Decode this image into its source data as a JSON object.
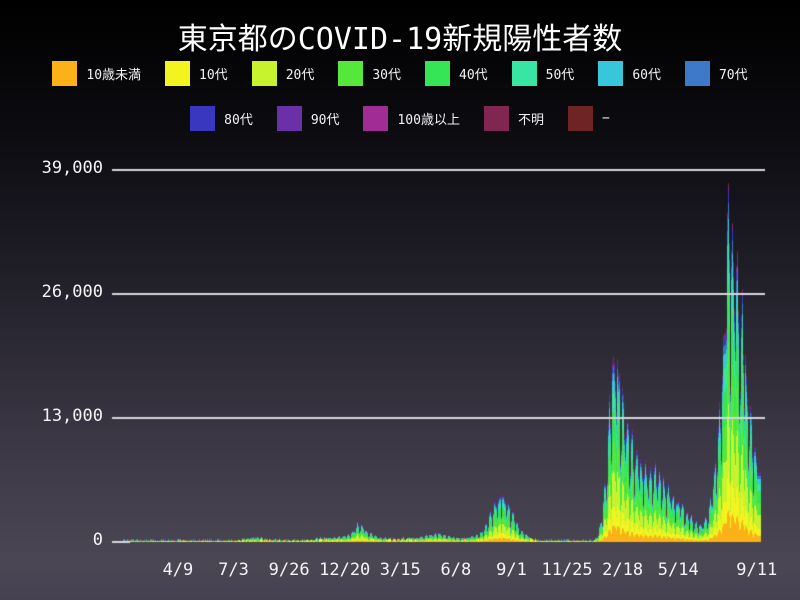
{
  "title": "東京都のCOVID-19新規陽性者数",
  "legend": {
    "row1": [
      {
        "label": "10歳未満",
        "color": "#FBB117"
      },
      {
        "label": "10代",
        "color": "#F3F41F"
      },
      {
        "label": "20代",
        "color": "#C6F32E"
      },
      {
        "label": "30代",
        "color": "#55E83B"
      },
      {
        "label": "40代",
        "color": "#35E556"
      },
      {
        "label": "50代",
        "color": "#38E5A2"
      },
      {
        "label": "60代",
        "color": "#38C6DB"
      },
      {
        "label": "70代",
        "color": "#3D79C8"
      }
    ],
    "row2": [
      {
        "label": "80代",
        "color": "#3936BF"
      },
      {
        "label": "90代",
        "color": "#6B2FA8"
      },
      {
        "label": "100歳以上",
        "color": "#A22C95"
      },
      {
        "label": "不明",
        "color": "#812551"
      },
      {
        "label": "−",
        "color": "#6E2424"
      }
    ]
  },
  "chart_data": {
    "type": "area",
    "stacked": true,
    "title": "東京都のCOVID-19新規陽性者数",
    "xlabel": "",
    "ylabel": "",
    "ylim": [
      0,
      42000
    ],
    "grid": {
      "color": "#d6d6dc",
      "lines_at": [
        13000,
        26000,
        39000
      ],
      "on_top": true
    },
    "y_ticks": [
      {
        "label": "0",
        "value": 0
      },
      {
        "label": "13,000",
        "value": 13000
      },
      {
        "label": "26,000",
        "value": 26000
      },
      {
        "label": "39,000",
        "value": 39000
      }
    ],
    "x_ticks": [
      {
        "label": "4/9",
        "date": "2020-04-09"
      },
      {
        "label": "7/3",
        "date": "2020-07-03"
      },
      {
        "label": "9/26",
        "date": "2020-09-26"
      },
      {
        "label": "12/20",
        "date": "2020-12-20"
      },
      {
        "label": "3/15",
        "date": "2021-03-15"
      },
      {
        "label": "6/8",
        "date": "2021-06-08"
      },
      {
        "label": "9/1",
        "date": "2021-09-01"
      },
      {
        "label": "11/25",
        "date": "2021-11-25"
      },
      {
        "label": "2/18",
        "date": "2022-02-18"
      },
      {
        "label": "5/14",
        "date": "2022-05-14"
      },
      {
        "label": "9/11",
        "date": "2022-09-11"
      }
    ],
    "date_start": "2020-01-16",
    "date_end": "2022-09-11",
    "series": [
      {
        "name": "10歳未満",
        "color": "#FBB117",
        "fraction": 0.085
      },
      {
        "name": "10代",
        "color": "#F3F41F",
        "fraction": 0.105
      },
      {
        "name": "20代",
        "color": "#C6F32E",
        "fraction": 0.185
      },
      {
        "name": "30代",
        "color": "#55E83B",
        "fraction": 0.17
      },
      {
        "name": "40代",
        "color": "#35E556",
        "fraction": 0.155
      },
      {
        "name": "50代",
        "color": "#38E5A2",
        "fraction": 0.115
      },
      {
        "name": "60代",
        "color": "#38C6DB",
        "fraction": 0.065
      },
      {
        "name": "70代",
        "color": "#3D79C8",
        "fraction": 0.042
      },
      {
        "name": "80代",
        "color": "#3936BF",
        "fraction": 0.028
      },
      {
        "name": "90代",
        "color": "#6B2FA8",
        "fraction": 0.013
      },
      {
        "name": "100歳以上",
        "color": "#A22C95",
        "fraction": 0.002
      },
      {
        "name": "不明",
        "color": "#812551",
        "fraction": 0.008
      },
      {
        "name": "−",
        "color": "#6E2424",
        "fraction": 0.003
      }
    ],
    "total_envelope_7day": [
      [
        "2020-01-16",
        1
      ],
      [
        "2020-02-20",
        4
      ],
      [
        "2020-03-15",
        20
      ],
      [
        "2020-03-28",
        60
      ],
      [
        "2020-04-11",
        170
      ],
      [
        "2020-04-18",
        160
      ],
      [
        "2020-05-05",
        60
      ],
      [
        "2020-05-23",
        8
      ],
      [
        "2020-06-10",
        20
      ],
      [
        "2020-06-30",
        55
      ],
      [
        "2020-07-15",
        230
      ],
      [
        "2020-08-01",
        400
      ],
      [
        "2020-08-10",
        350
      ],
      [
        "2020-08-25",
        220
      ],
      [
        "2020-09-20",
        160
      ],
      [
        "2020-10-20",
        170
      ],
      [
        "2020-11-15",
        350
      ],
      [
        "2020-12-01",
        450
      ],
      [
        "2020-12-20",
        650
      ],
      [
        "2020-12-28",
        850
      ],
      [
        "2021-01-04",
        1250
      ],
      [
        "2021-01-08",
        1900
      ],
      [
        "2021-01-16",
        1550
      ],
      [
        "2021-01-25",
        1000
      ],
      [
        "2021-02-10",
        450
      ],
      [
        "2021-02-25",
        300
      ],
      [
        "2021-03-15",
        300
      ],
      [
        "2021-03-31",
        380
      ],
      [
        "2021-04-15",
        550
      ],
      [
        "2021-05-01",
        800
      ],
      [
        "2021-05-12",
        900
      ],
      [
        "2021-05-25",
        650
      ],
      [
        "2021-06-10",
        440
      ],
      [
        "2021-06-25",
        450
      ],
      [
        "2021-07-10",
        700
      ],
      [
        "2021-07-20",
        1200
      ],
      [
        "2021-07-31",
        2800
      ],
      [
        "2021-08-08",
        4100
      ],
      [
        "2021-08-15",
        4600
      ],
      [
        "2021-08-21",
        4400
      ],
      [
        "2021-09-01",
        2900
      ],
      [
        "2021-09-15",
        1200
      ],
      [
        "2021-09-30",
        350
      ],
      [
        "2021-10-15",
        80
      ],
      [
        "2021-11-01",
        25
      ],
      [
        "2021-11-20",
        16
      ],
      [
        "2021-12-10",
        20
      ],
      [
        "2021-12-25",
        40
      ],
      [
        "2022-01-04",
        120
      ],
      [
        "2022-01-10",
        700
      ],
      [
        "2022-01-16",
        2500
      ],
      [
        "2022-01-22",
        6500
      ],
      [
        "2022-01-28",
        12500
      ],
      [
        "2022-02-03",
        18500
      ],
      [
        "2022-02-09",
        17500
      ],
      [
        "2022-02-18",
        14000
      ],
      [
        "2022-03-01",
        10500
      ],
      [
        "2022-03-15",
        8200
      ],
      [
        "2022-03-26",
        7200
      ],
      [
        "2022-04-10",
        7000
      ],
      [
        "2022-04-25",
        5500
      ],
      [
        "2022-05-10",
        4200
      ],
      [
        "2022-05-20",
        3600
      ],
      [
        "2022-06-05",
        2200
      ],
      [
        "2022-06-18",
        1700
      ],
      [
        "2022-06-28",
        2800
      ],
      [
        "2022-07-05",
        5500
      ],
      [
        "2022-07-12",
        10000
      ],
      [
        "2022-07-18",
        15000
      ],
      [
        "2022-07-24",
        24000
      ],
      [
        "2022-07-28",
        33500
      ],
      [
        "2022-08-03",
        30000
      ],
      [
        "2022-08-10",
        26500
      ],
      [
        "2022-08-18",
        22500
      ],
      [
        "2022-08-26",
        16500
      ],
      [
        "2022-09-04",
        11000
      ],
      [
        "2022-09-11",
        8500
      ]
    ],
    "weekly_pattern": {
      "weekday_factors_sun_first": [
        0.92,
        0.55,
        0.72,
        1.0,
        1.1,
        1.15,
        1.05
      ]
    },
    "noise": {
      "seed": 7,
      "amplitude": 0.1
    }
  }
}
